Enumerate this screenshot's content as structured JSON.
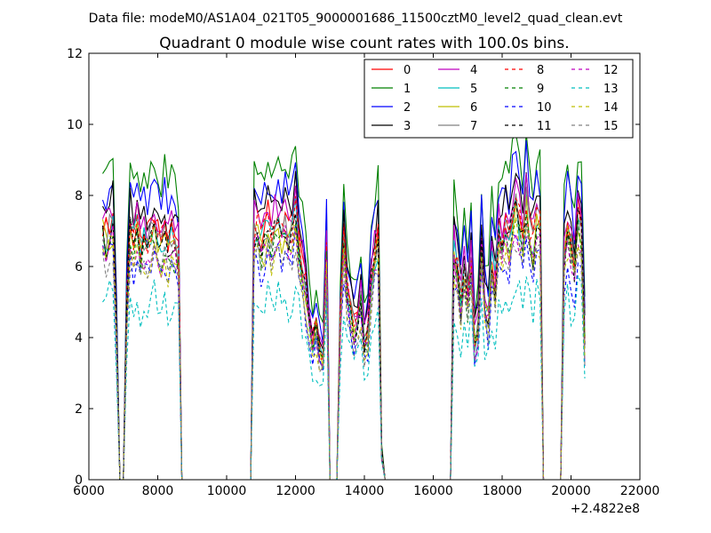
{
  "chart_data": {
    "type": "line",
    "suptitle": "Data file: modeM0/AS1A04_021T05_9000001686_11500cztM0_level2_quad_clean.evt",
    "title": "Quadrant 0 module wise count rates with 100.0s bins.",
    "xlabel": "",
    "ylabel": "",
    "x_offset_label": "+2.4822e8",
    "xlim": [
      6000,
      22000
    ],
    "ylim": [
      0,
      12
    ],
    "x_ticks": [
      "6000",
      "8000",
      "10000",
      "12000",
      "14000",
      "16000",
      "18000",
      "20000",
      "22000"
    ],
    "y_ticks": [
      "0",
      "2",
      "4",
      "6",
      "8",
      "10",
      "12"
    ],
    "legend_position": "upper-right",
    "segments": [
      {
        "start": 6400,
        "end": 8700
      },
      {
        "start": 10800,
        "end": 14600
      },
      {
        "start": 16600,
        "end": 20400
      }
    ],
    "gap_range": [
      8800,
      10700
    ],
    "series": [
      {
        "name": "0",
        "color": "#ff0000",
        "dash": "solid",
        "level": 7.3
      },
      {
        "name": "1",
        "color": "#008000",
        "dash": "solid",
        "level": 8.9
      },
      {
        "name": "2",
        "color": "#0000ff",
        "dash": "solid",
        "level": 8.3
      },
      {
        "name": "3",
        "color": "#000000",
        "dash": "solid",
        "level": 7.9
      },
      {
        "name": "4",
        "color": "#bf00bf",
        "dash": "solid",
        "level": 7.6
      },
      {
        "name": "5",
        "color": "#00bfbf",
        "dash": "solid",
        "level": 7.0
      },
      {
        "name": "6",
        "color": "#bfbf00",
        "dash": "solid",
        "level": 6.9
      },
      {
        "name": "7",
        "color": "#808080",
        "dash": "solid",
        "level": 7.1
      },
      {
        "name": "8",
        "color": "#ff0000",
        "dash": "dashed",
        "level": 7.2
      },
      {
        "name": "9",
        "color": "#008000",
        "dash": "dashed",
        "level": 6.7
      },
      {
        "name": "10",
        "color": "#0000ff",
        "dash": "dashed",
        "level": 6.2
      },
      {
        "name": "11",
        "color": "#000000",
        "dash": "dashed",
        "level": 6.9
      },
      {
        "name": "12",
        "color": "#bf00bf",
        "dash": "dashed",
        "level": 6.6
      },
      {
        "name": "13",
        "color": "#00bfbf",
        "dash": "dashed",
        "level": 5.2
      },
      {
        "name": "14",
        "color": "#bfbf00",
        "dash": "dashed",
        "level": 6.5
      },
      {
        "name": "15",
        "color": "#808080",
        "dash": "dashed",
        "level": 6.3
      }
    ],
    "profile": {
      "x": [
        6400,
        6500,
        6600,
        6700,
        6800,
        6900,
        7000,
        7100,
        7200,
        7300,
        7400,
        7500,
        7600,
        7700,
        7800,
        7900,
        8000,
        8100,
        8200,
        8300,
        8400,
        8500,
        8600,
        8700,
        8800,
        10700,
        10800,
        10900,
        11000,
        11100,
        11200,
        11300,
        11400,
        11500,
        11600,
        11700,
        11800,
        11900,
        12000,
        12100,
        12200,
        12300,
        12400,
        12500,
        12600,
        12700,
        12800,
        12900,
        13000,
        13100,
        13200,
        13300,
        13400,
        13500,
        13600,
        13700,
        13800,
        13900,
        14000,
        14100,
        14200,
        14300,
        14400,
        14500,
        14600,
        14700,
        16500,
        16600,
        16700,
        16800,
        16900,
        17000,
        17100,
        17200,
        17300,
        17400,
        17500,
        17600,
        17700,
        17800,
        17900,
        18000,
        18100,
        18200,
        18300,
        18400,
        18500,
        18600,
        18700,
        18800,
        18900,
        19000,
        19100,
        19200,
        19300,
        19400,
        19700,
        19800,
        19900,
        20000,
        20100,
        20200,
        20300,
        20400
      ],
      "factor": [
        1.0,
        0.96,
        1.0,
        1.02,
        0.6,
        0.0,
        0.0,
        0.7,
        1.0,
        0.95,
        1.02,
        0.9,
        0.96,
        0.93,
        0.97,
        1.0,
        0.95,
        0.92,
        0.98,
        0.9,
        0.96,
        0.93,
        0.9,
        0.0,
        0.0,
        0.0,
        0.98,
        1.0,
        0.93,
        0.98,
        1.02,
        0.95,
        1.0,
        1.03,
        0.97,
        1.02,
        0.94,
        0.98,
        1.08,
        0.92,
        0.85,
        0.75,
        0.62,
        0.55,
        0.6,
        0.5,
        0.48,
        0.9,
        0.0,
        0.0,
        0.0,
        0.62,
        0.95,
        0.75,
        0.68,
        0.6,
        0.65,
        0.72,
        0.55,
        0.58,
        0.8,
        0.88,
        0.95,
        0.1,
        0.0,
        0.0,
        0.0,
        0.9,
        0.82,
        0.7,
        0.85,
        0.72,
        0.88,
        0.55,
        0.6,
        0.92,
        0.7,
        0.65,
        0.88,
        0.78,
        0.98,
        0.95,
        1.02,
        0.95,
        1.05,
        1.08,
        1.02,
        0.95,
        1.1,
        0.98,
        0.92,
        1.02,
        1.0,
        0.0,
        0.0,
        0.0,
        0.0,
        0.9,
        1.0,
        0.92,
        0.85,
        1.05,
        1.02,
        0.55
      ]
    }
  }
}
